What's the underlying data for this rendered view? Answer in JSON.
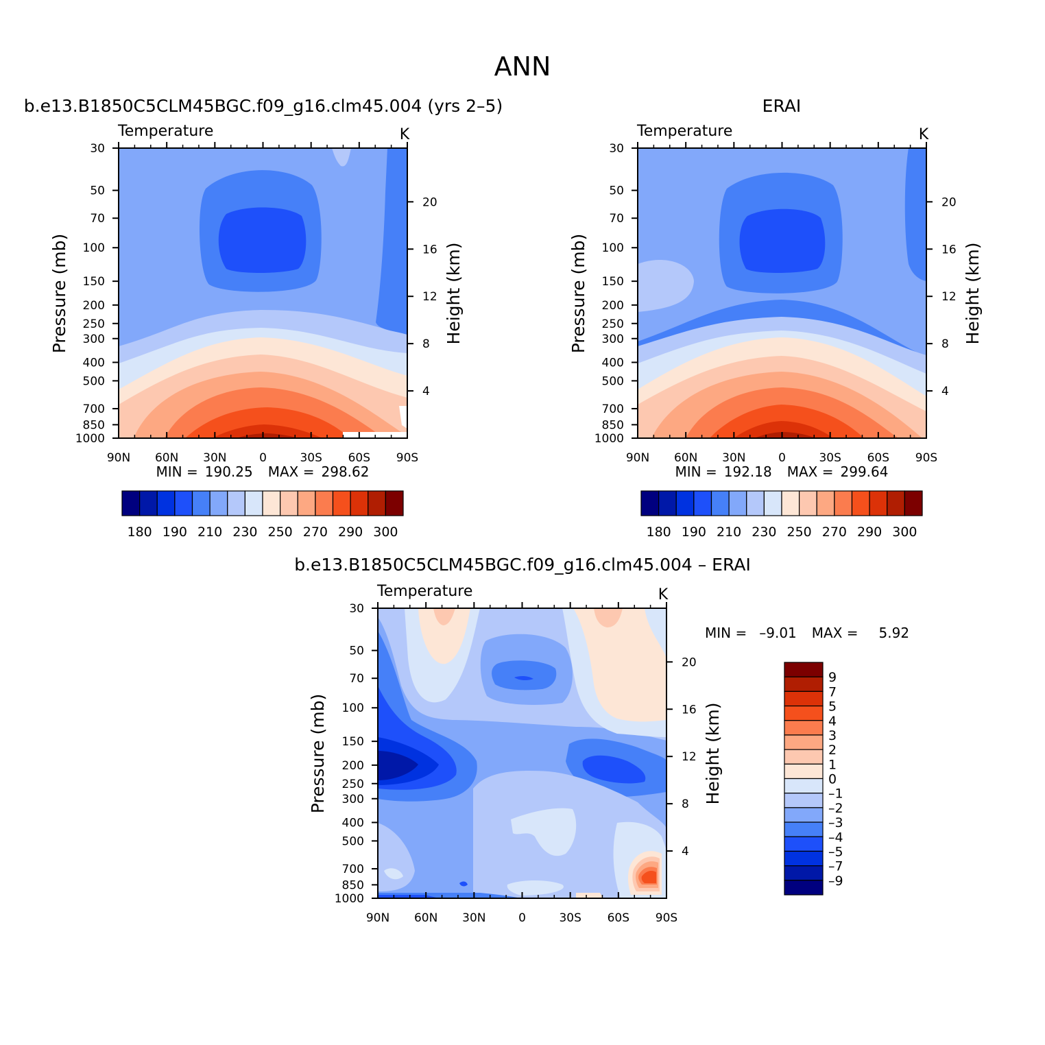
{
  "page_title": "ANN",
  "chart_data": [
    {
      "type": "heatmap",
      "panel_title": "b.e13.B1850C5CLM45BGC.f09_g16.clm45.004 (yrs 2–5)",
      "field_label": "Temperature",
      "units": "K",
      "ylabel": "Pressure (mb)",
      "ylabel_right": "Height (km)",
      "x_ticks": [
        "90N",
        "60N",
        "30N",
        "0",
        "30S",
        "60S",
        "90S"
      ],
      "y_ticks": [
        30,
        50,
        70,
        100,
        150,
        200,
        250,
        300,
        400,
        500,
        700,
        850,
        1000
      ],
      "height_ticks": [
        20,
        16,
        12,
        8,
        4
      ],
      "ylim": [
        1000,
        30
      ],
      "stats": {
        "min_label": "MIN =",
        "min": "190.25",
        "max_label": "MAX =",
        "max": "298.62"
      },
      "colorbar_labels": [
        "180",
        "190",
        "210",
        "230",
        "250",
        "270",
        "290",
        "300"
      ]
    },
    {
      "type": "heatmap",
      "panel_title": "ERAI",
      "field_label": "Temperature",
      "units": "K",
      "ylabel": "Pressure (mb)",
      "ylabel_right": "Height (km)",
      "x_ticks": [
        "90N",
        "60N",
        "30N",
        "0",
        "30S",
        "60S",
        "90S"
      ],
      "y_ticks": [
        30,
        50,
        70,
        100,
        150,
        200,
        250,
        300,
        400,
        500,
        700,
        850,
        1000
      ],
      "height_ticks": [
        20,
        16,
        12,
        8,
        4
      ],
      "ylim": [
        1000,
        30
      ],
      "stats": {
        "min_label": "MIN =",
        "min": "192.18",
        "max_label": "MAX =",
        "max": "299.64"
      },
      "colorbar_labels": [
        "180",
        "190",
        "210",
        "230",
        "250",
        "270",
        "290",
        "300"
      ]
    },
    {
      "type": "heatmap",
      "panel_title": "b.e13.B1850C5CLM45BGC.f09_g16.clm45.004 – ERAI",
      "field_label": "Temperature",
      "units": "K",
      "ylabel": "Pressure (mb)",
      "ylabel_right": "Height (km)",
      "x_ticks": [
        "90N",
        "60N",
        "30N",
        "0",
        "30S",
        "60S",
        "90S"
      ],
      "y_ticks": [
        30,
        50,
        70,
        100,
        150,
        200,
        250,
        300,
        400,
        500,
        700,
        850,
        1000
      ],
      "height_ticks": [
        20,
        16,
        12,
        8,
        4
      ],
      "ylim": [
        1000,
        30
      ],
      "stats": {
        "min_label": "MIN =",
        "min": "–9.01",
        "max_label": "MAX =",
        "max": "5.92"
      },
      "colorbar_labels": [
        "9",
        "7",
        "5",
        "4",
        "3",
        "2",
        "1",
        "0",
        "–1",
        "–2",
        "–3",
        "–4",
        "–5",
        "–7",
        "–9"
      ]
    }
  ],
  "colors": {
    "levels": [
      "#00007f",
      "#0018a8",
      "#0032e0",
      "#1e50fa",
      "#4680f8",
      "#82a8fa",
      "#b4c8fa",
      "#d8e6fa",
      "#fde6d6",
      "#fdc8b0",
      "#fda882",
      "#fb7c4e",
      "#f5501c",
      "#dc3208",
      "#b01e02",
      "#7c0000"
    ]
  }
}
